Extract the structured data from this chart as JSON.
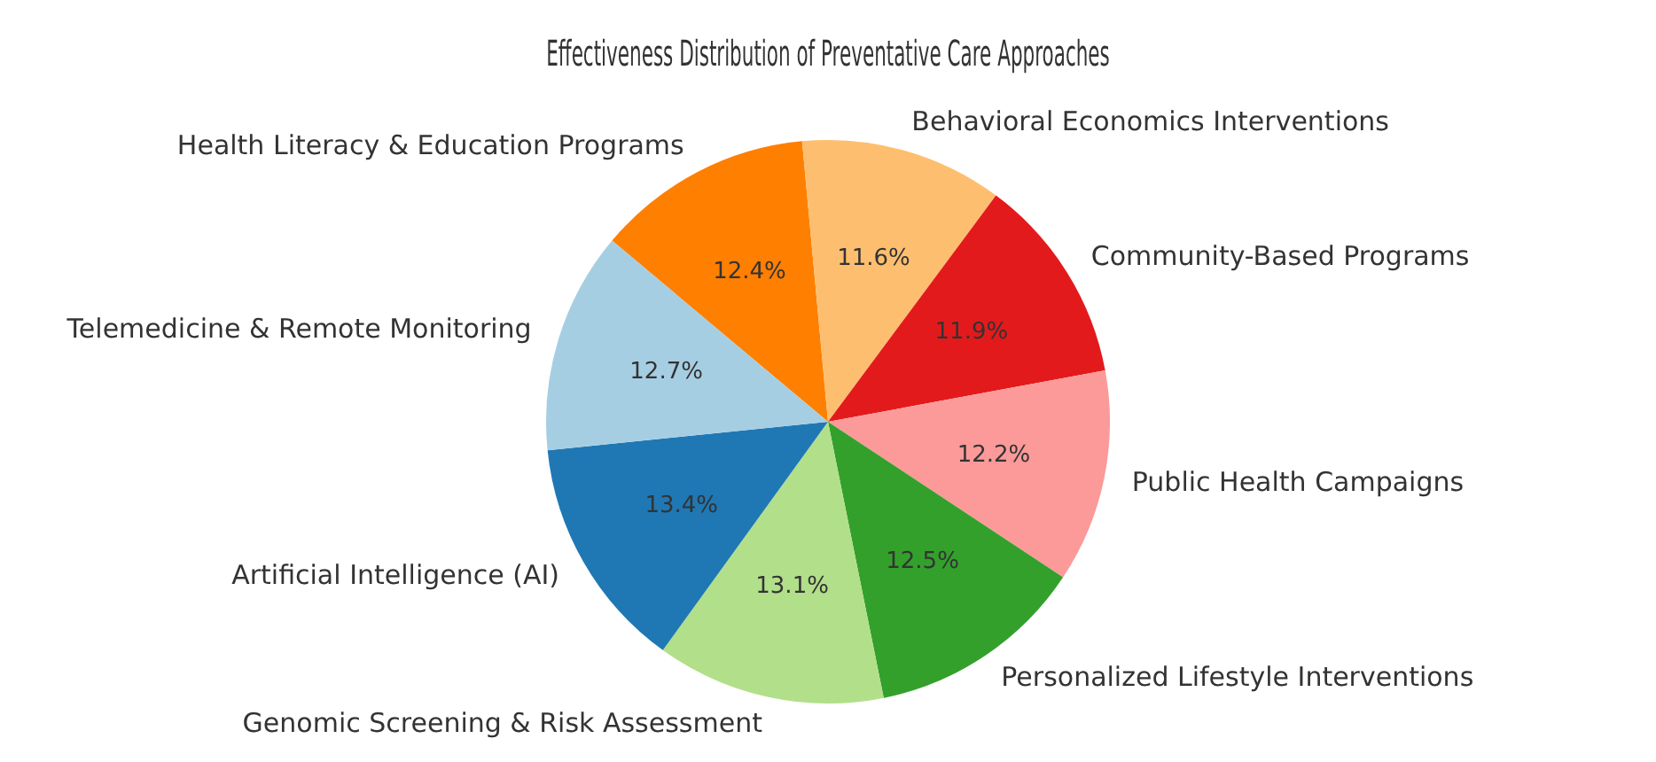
{
  "chart_data": {
    "type": "pie",
    "title": "Effectiveness Distribution of Preventative Care Approaches",
    "categories": [
      "Telemedicine & Remote Monitoring",
      "Artificial Intelligence (AI)",
      "Genomic Screening & Risk Assessment",
      "Personalized Lifestyle Interventions",
      "Public Health Campaigns",
      "Community-Based Programs",
      "Behavioral Economics Interventions",
      "Health Literacy & Education Programs"
    ],
    "values": [
      12.7,
      13.4,
      13.1,
      12.5,
      12.2,
      11.9,
      11.6,
      12.4
    ],
    "value_labels": [
      "12.7%",
      "13.4%",
      "13.1%",
      "12.5%",
      "12.2%",
      "11.9%",
      "11.6%",
      "12.4%"
    ],
    "colors": [
      "#a6cee3",
      "#1f78b4",
      "#b2df8a",
      "#33a02c",
      "#fb9a99",
      "#e31a1c",
      "#fdbf6f",
      "#ff7f00"
    ],
    "legend": false
  }
}
